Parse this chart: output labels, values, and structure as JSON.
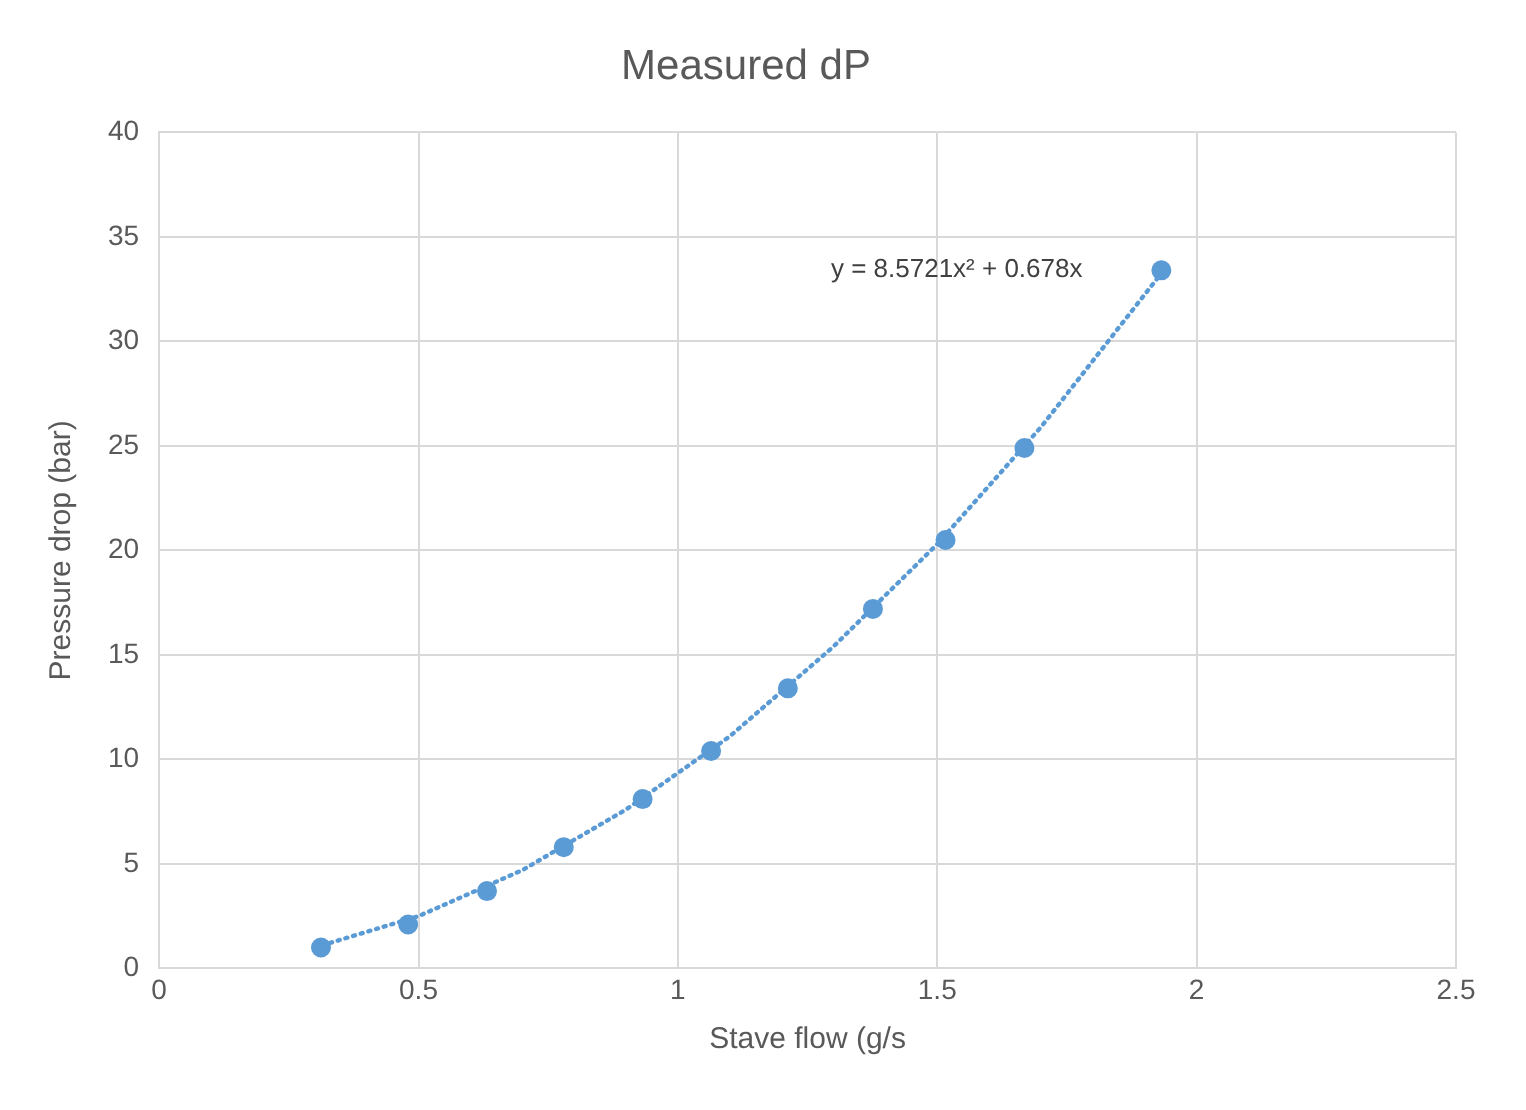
{
  "chart_data": {
    "type": "scatter",
    "title": "Measured dP",
    "xlabel": "Stave flow (g/s",
    "ylabel": "Pressure drop (bar)",
    "series": [
      {
        "type": "scatter",
        "color": "#5b9bd5",
        "x": [
          0.312,
          0.48,
          0.632,
          0.78,
          0.932,
          1.064,
          1.212,
          1.376,
          1.516,
          1.668,
          1.932
        ],
        "values": [
          1.0,
          2.1,
          3.7,
          5.8,
          8.1,
          10.4,
          13.4,
          17.2,
          20.5,
          24.9,
          33.4
        ],
        "marker": "circle"
      },
      {
        "type": "line",
        "color": "#5b9bd5",
        "x": [
          0.3,
          0.5,
          0.7,
          0.9,
          1.1,
          1.3,
          1.5,
          1.7,
          1.93
        ],
        "values": [
          1.0,
          2.5,
          4.7,
          7.6,
          11.1,
          15.4,
          20.3,
          25.9,
          33.2
        ],
        "marker": "none",
        "line_style": "dotted"
      }
    ],
    "annotations": [
      "y = 8.5721x² + 0.678x"
    ],
    "xlim": [
      0,
      2.5
    ],
    "xticks": [
      0,
      0.5,
      1,
      1.5,
      2,
      2.5
    ],
    "ylim": [
      0,
      40
    ],
    "yticks": [
      0,
      5,
      10,
      15,
      20,
      25,
      30,
      35,
      40
    ],
    "grid": true,
    "legend": false
  }
}
